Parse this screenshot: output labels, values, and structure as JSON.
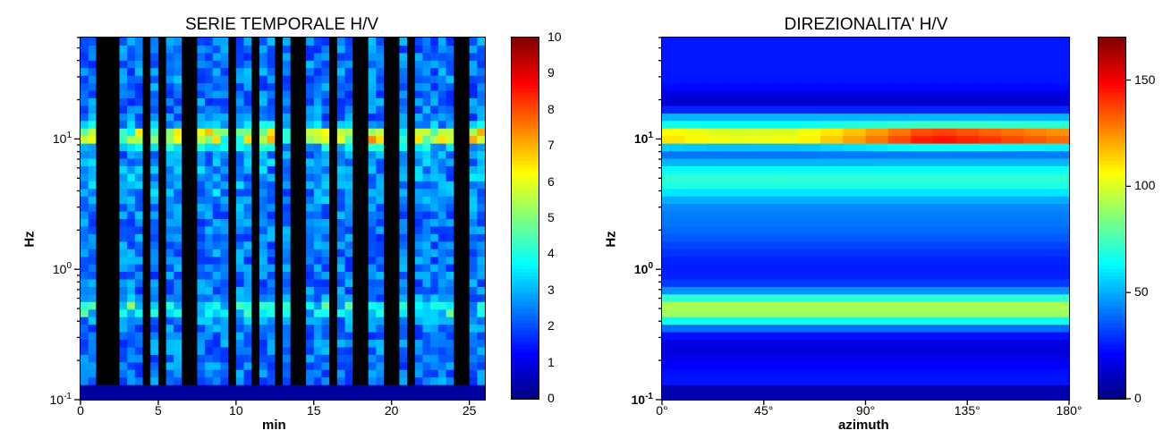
{
  "chart_data": [
    {
      "type": "heatmap",
      "title": "SERIE TEMPORALE H/V",
      "xlabel": "min",
      "ylabel": "Hz",
      "x_ticks": [
        "0",
        "5",
        "10",
        "15",
        "20",
        "25"
      ],
      "x_tick_values": [
        0,
        5,
        10,
        15,
        20,
        25
      ],
      "xlim": [
        0,
        26
      ],
      "y_scale": "log",
      "ylim": [
        0.1,
        60
      ],
      "y_ticks": [
        {
          "base": "10",
          "exp": "-1",
          "value": 0.1
        },
        {
          "base": "10",
          "exp": "0",
          "value": 1
        },
        {
          "base": "10",
          "exp": "1",
          "value": 10
        }
      ],
      "colorbar": {
        "colormap": "jet",
        "range": [
          0,
          10
        ],
        "tick_labels": [
          "0",
          "1",
          "2",
          "3",
          "4",
          "5",
          "6",
          "7",
          "8",
          "9",
          "10"
        ],
        "tick_values": [
          0,
          1,
          2,
          3,
          4,
          5,
          6,
          7,
          8,
          9,
          10
        ]
      },
      "masked_time_windows_min": [
        [
          1.0,
          2.5
        ],
        [
          4.0,
          4.5
        ],
        [
          5.0,
          5.5
        ],
        [
          6.5,
          7.5
        ],
        [
          9.5,
          10.0
        ],
        [
          11.0,
          11.5
        ],
        [
          12.5,
          13.0
        ],
        [
          13.5,
          14.5
        ],
        [
          16.0,
          16.5
        ],
        [
          17.5,
          18.5
        ],
        [
          19.5,
          20.5
        ],
        [
          21.0,
          21.5
        ],
        [
          24.0,
          25.0
        ]
      ],
      "features": {
        "peak_band_hz": 10.5,
        "peak_band_level": 5.5,
        "secondary_band_hz": 0.5,
        "secondary_band_level": 4.5,
        "background_level": 2
      }
    },
    {
      "type": "heatmap",
      "title": "DIREZIONALITA' H/V",
      "xlabel": "azimuth",
      "ylabel": "Hz",
      "x_ticks": [
        "0°",
        "45°",
        "90°",
        "135°",
        "180°"
      ],
      "x_tick_values": [
        0,
        45,
        90,
        135,
        180
      ],
      "xlim": [
        0,
        180
      ],
      "y_scale": "log",
      "ylim": [
        0.1,
        60
      ],
      "y_ticks": [
        {
          "base": "10",
          "exp": "-1",
          "value": 0.1
        },
        {
          "base": "10",
          "exp": "0",
          "value": 1
        },
        {
          "base": "10",
          "exp": "1",
          "value": 10
        }
      ],
      "colorbar": {
        "colormap": "jet",
        "range": [
          0,
          170
        ],
        "tick_labels": [
          "0",
          "50",
          "100",
          "150"
        ],
        "tick_values": [
          0,
          50,
          100,
          150
        ]
      },
      "features": {
        "peak_band_hz": 10.5,
        "peak_level_by_azimuth": [
          [
            0,
            120
          ],
          [
            30,
            110
          ],
          [
            60,
            112
          ],
          [
            90,
            135
          ],
          [
            120,
            160
          ],
          [
            150,
            150
          ],
          [
            180,
            140
          ]
        ],
        "secondary_band_hz": 0.5,
        "secondary_band_level": 95,
        "background_level": 40
      }
    }
  ]
}
